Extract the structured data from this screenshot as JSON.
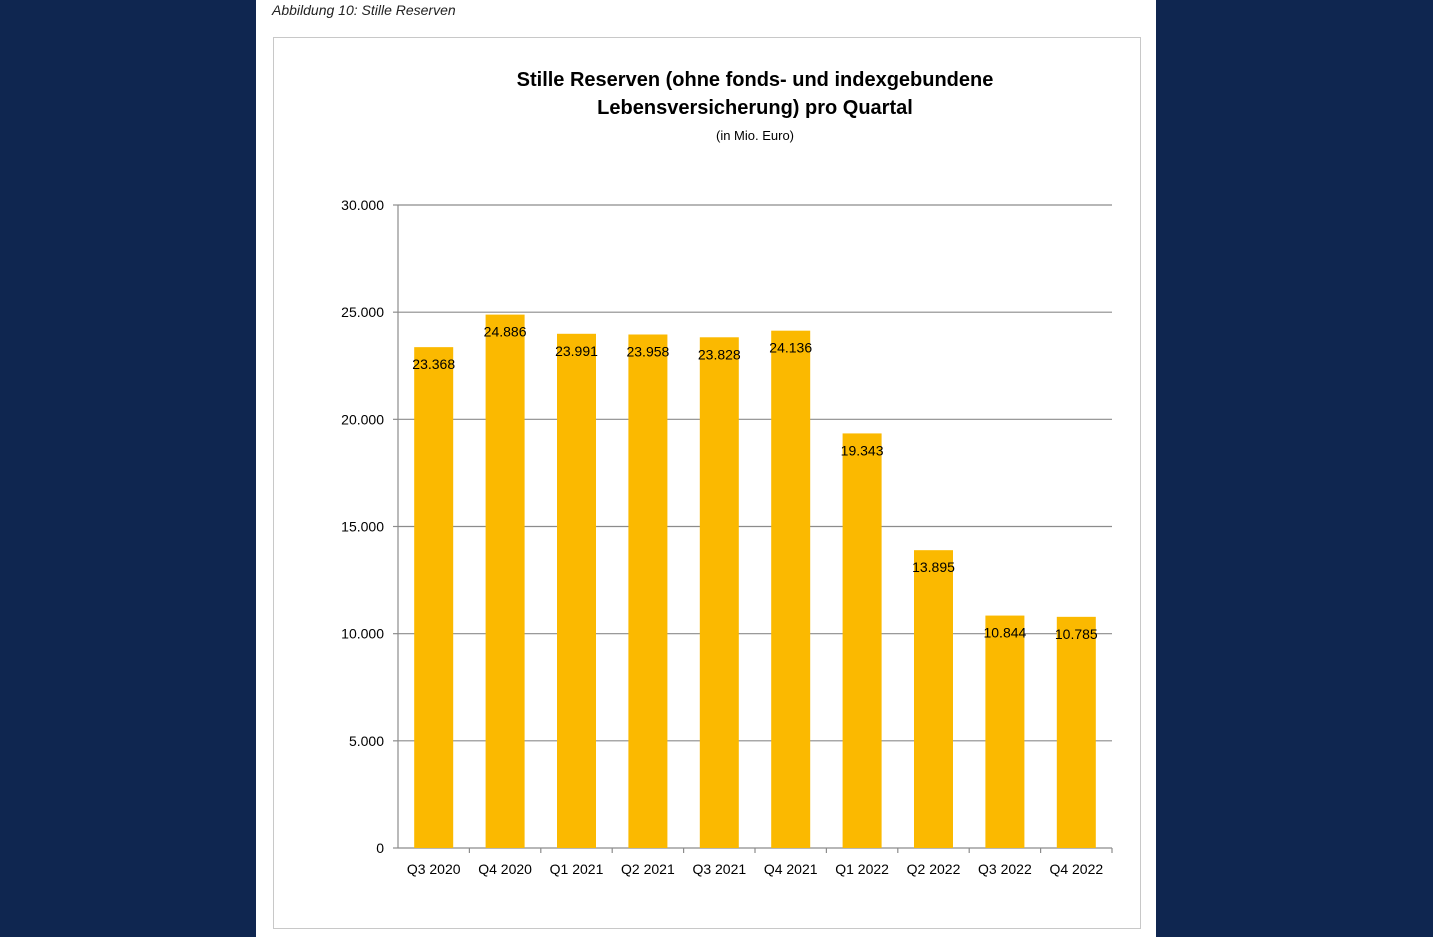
{
  "figure_caption": "Abbildung 10: Stille Reserven",
  "chart_data": {
    "type": "bar",
    "title": "Stille Reserven (ohne fonds- und indexgebundene\nLebensversicherung) pro Quartal",
    "subtitle": "(in Mio. Euro)",
    "xlabel": "",
    "ylabel": "",
    "categories": [
      "Q3 2020",
      "Q4 2020",
      "Q1 2021",
      "Q2 2021",
      "Q3 2021",
      "Q4 2021",
      "Q1 2022",
      "Q2 2022",
      "Q3 2022",
      "Q4 2022"
    ],
    "values": [
      23368,
      24886,
      23991,
      23958,
      23828,
      24136,
      19343,
      13895,
      10844,
      10785
    ],
    "value_labels": [
      "23.368",
      "24.886",
      "23.991",
      "23.958",
      "23.828",
      "24.136",
      "19.343",
      "13.895",
      "10.844",
      "10.785"
    ],
    "ylim": [
      0,
      30000
    ],
    "yticks": [
      0,
      5000,
      10000,
      15000,
      20000,
      25000,
      30000
    ],
    "ytick_labels": [
      "0",
      "5.000",
      "10.000",
      "15.000",
      "20.000",
      "25.000",
      "30.000"
    ],
    "grid": true,
    "legend": "none",
    "bar_color": "#fbb900",
    "grid_color": "#8c8c8c"
  }
}
